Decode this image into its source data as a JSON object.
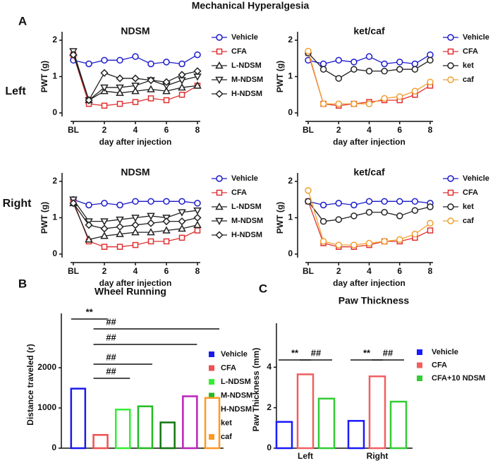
{
  "figure": {
    "title": "Mechanical Hyperalgesia",
    "panel_labels": [
      "A",
      "B",
      "C"
    ],
    "row_labels": [
      "Left",
      "Right"
    ]
  },
  "chart_data": [
    {
      "type": "line",
      "title": "NDSM",
      "x_label": "day after injection",
      "y_label": "PWT (g)",
      "x": [
        0,
        1,
        2,
        3,
        4,
        5,
        6,
        7,
        8
      ],
      "xlim": [
        0,
        8
      ],
      "xticks": [
        {
          "value": 0,
          "label": "BL"
        },
        2,
        4,
        6,
        8
      ],
      "ylim": [
        0,
        2
      ],
      "yticks": [
        0,
        1,
        2
      ],
      "series": [
        {
          "name": "Vehicle",
          "color": "#1a1acc",
          "marker": "circle",
          "values": [
            1.45,
            1.35,
            1.45,
            1.45,
            1.55,
            1.35,
            1.4,
            1.35,
            1.6
          ]
        },
        {
          "name": "CFA",
          "color": "#e03030",
          "marker": "square",
          "values": [
            1.6,
            0.25,
            0.2,
            0.25,
            0.3,
            0.4,
            0.35,
            0.5,
            0.75
          ]
        },
        {
          "name": "L-NDSM",
          "color": "#222222",
          "marker": "triangle-up",
          "values": [
            1.65,
            0.35,
            0.6,
            0.55,
            0.6,
            0.65,
            0.6,
            0.7,
            0.75
          ]
        },
        {
          "name": "M-NDSM",
          "color": "#222222",
          "marker": "triangle-down",
          "values": [
            1.7,
            0.35,
            0.7,
            0.7,
            0.75,
            0.9,
            0.75,
            0.9,
            1.0
          ]
        },
        {
          "name": "H-NDSM",
          "color": "#222222",
          "marker": "diamond",
          "values": [
            1.6,
            0.35,
            1.1,
            0.95,
            0.95,
            0.9,
            0.85,
            1.05,
            1.15
          ]
        }
      ]
    },
    {
      "type": "line",
      "title": "ket/caf",
      "x_label": "day after injection",
      "y_label": "PWT (g)",
      "x": [
        0,
        1,
        2,
        3,
        4,
        5,
        6,
        7,
        8
      ],
      "xlim": [
        0,
        8
      ],
      "xticks": [
        {
          "value": 0,
          "label": "BL"
        },
        2,
        4,
        6,
        8
      ],
      "ylim": [
        0,
        2
      ],
      "yticks": [
        0,
        1,
        2
      ],
      "series": [
        {
          "name": "Vehicle",
          "color": "#1a1acc",
          "marker": "circle",
          "values": [
            1.45,
            1.35,
            1.45,
            1.4,
            1.55,
            1.35,
            1.4,
            1.35,
            1.6
          ]
        },
        {
          "name": "CFA",
          "color": "#e03030",
          "marker": "square",
          "values": [
            1.65,
            0.25,
            0.2,
            0.25,
            0.3,
            0.35,
            0.35,
            0.5,
            0.75
          ]
        },
        {
          "name": "ket",
          "color": "#222222",
          "marker": "circle",
          "values": [
            1.65,
            1.2,
            0.95,
            1.2,
            1.15,
            1.15,
            1.2,
            1.2,
            1.45
          ]
        },
        {
          "name": "caf",
          "color": "#f0a030",
          "marker": "circle",
          "values": [
            1.7,
            0.25,
            0.25,
            0.25,
            0.25,
            0.4,
            0.45,
            0.6,
            0.85
          ]
        }
      ]
    },
    {
      "type": "line",
      "title": "NDSM",
      "x_label": "day after injection",
      "y_label": "PWT (g)",
      "x": [
        0,
        1,
        2,
        3,
        4,
        5,
        6,
        7,
        8
      ],
      "xlim": [
        0,
        8
      ],
      "xticks": [
        {
          "value": 0,
          "label": "BL"
        },
        2,
        4,
        6,
        8
      ],
      "ylim": [
        0,
        2
      ],
      "yticks": [
        0,
        1,
        2
      ],
      "series": [
        {
          "name": "Vehicle",
          "color": "#1a1acc",
          "marker": "circle",
          "values": [
            1.5,
            1.35,
            1.4,
            1.35,
            1.45,
            1.45,
            1.45,
            1.45,
            1.4
          ]
        },
        {
          "name": "CFA",
          "color": "#e03030",
          "marker": "square",
          "values": [
            1.45,
            0.35,
            0.2,
            0.2,
            0.25,
            0.35,
            0.35,
            0.45,
            0.65
          ]
        },
        {
          "name": "L-NDSM",
          "color": "#222222",
          "marker": "triangle-up",
          "values": [
            1.4,
            0.4,
            0.5,
            0.55,
            0.6,
            0.6,
            0.65,
            0.7,
            0.8
          ]
        },
        {
          "name": "M-NDSM",
          "color": "#222222",
          "marker": "triangle-down",
          "values": [
            1.5,
            0.9,
            0.9,
            0.95,
            1.0,
            1.05,
            1.0,
            1.15,
            1.2
          ]
        },
        {
          "name": "H-NDSM",
          "color": "#222222",
          "marker": "diamond",
          "values": [
            1.4,
            0.8,
            0.7,
            0.75,
            0.8,
            0.85,
            0.9,
            0.9,
            1.0
          ]
        }
      ]
    },
    {
      "type": "line",
      "title": "ket/caf",
      "x_label": "day after injection",
      "y_label": "PWT (g)",
      "x": [
        0,
        1,
        2,
        3,
        4,
        5,
        6,
        7,
        8
      ],
      "xlim": [
        0,
        8
      ],
      "xticks": [
        {
          "value": 0,
          "label": "BL"
        },
        2,
        4,
        6,
        8
      ],
      "ylim": [
        0,
        2
      ],
      "yticks": [
        0,
        1,
        2
      ],
      "series": [
        {
          "name": "Vehicle",
          "color": "#1a1acc",
          "marker": "circle",
          "values": [
            1.45,
            1.35,
            1.4,
            1.35,
            1.45,
            1.45,
            1.45,
            1.45,
            1.4
          ]
        },
        {
          "name": "CFA",
          "color": "#e03030",
          "marker": "square",
          "values": [
            1.45,
            0.3,
            0.2,
            0.2,
            0.25,
            0.35,
            0.35,
            0.45,
            0.65
          ]
        },
        {
          "name": "ket",
          "color": "#222222",
          "marker": "circle",
          "values": [
            1.45,
            0.9,
            0.95,
            1.05,
            1.15,
            1.15,
            1.05,
            1.2,
            1.3
          ]
        },
        {
          "name": "caf",
          "color": "#f0a030",
          "marker": "circle",
          "values": [
            1.75,
            0.35,
            0.25,
            0.25,
            0.3,
            0.35,
            0.4,
            0.55,
            0.85
          ]
        }
      ]
    },
    {
      "type": "bar",
      "title": "Wheel Running",
      "y_label": "Distance traveled (r)",
      "categories": [
        "Vehicle",
        "CFA",
        "L-NDSM",
        "M-NDSM",
        "H-NDSM",
        "ket",
        "caf"
      ],
      "values": [
        1480,
        330,
        960,
        1040,
        640,
        1290,
        1250
      ],
      "colors": [
        "#1a1aee",
        "#f05050",
        "#33ee33",
        "#22bb22",
        "#117711",
        "#bb22bb",
        "#ff9922"
      ],
      "ylim": [
        0,
        3000
      ],
      "yticks": [
        0,
        1000,
        2000
      ],
      "annotations": [
        "**",
        "##",
        "##",
        "##",
        "##"
      ]
    },
    {
      "type": "grouped-bar",
      "title": "Paw Thickness",
      "y_label": "Paw Thickness (mm)",
      "categories": [
        "Left",
        "Right"
      ],
      "ylim": [
        0,
        6
      ],
      "yticks": [
        0,
        2,
        4
      ],
      "series": [
        {
          "name": "Vehicle",
          "color": "#1a1aff",
          "values": [
            1.3,
            1.35
          ]
        },
        {
          "name": "CFA",
          "color": "#f06060",
          "values": [
            3.65,
            3.55
          ]
        },
        {
          "name": "CFA+10 NDSM",
          "color": "#33cc33",
          "values": [
            2.45,
            2.3
          ]
        }
      ],
      "annotations": [
        "**",
        "##",
        "**",
        "##"
      ]
    }
  ]
}
